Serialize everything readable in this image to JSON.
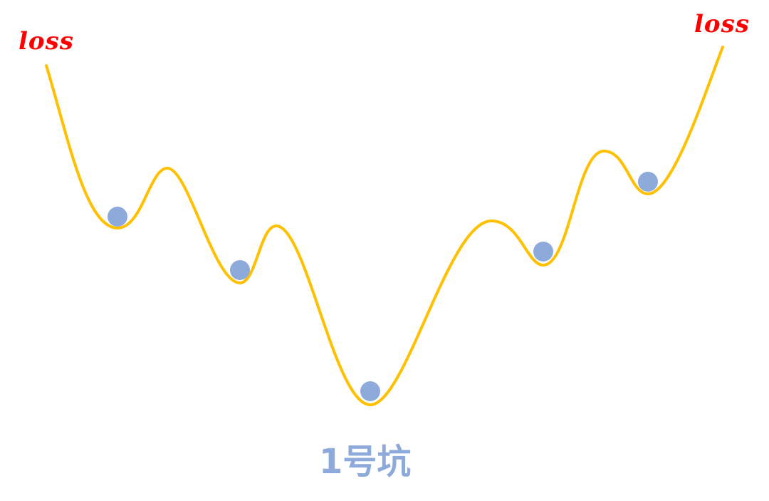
{
  "labels": {
    "loss_left": "loss",
    "loss_right": "loss",
    "pit": "1号坑"
  },
  "colors": {
    "curve": "#ffc000",
    "ball": "#8eaadb",
    "loss_text": "#ff0000",
    "pit_text": "#8eaadb"
  }
}
